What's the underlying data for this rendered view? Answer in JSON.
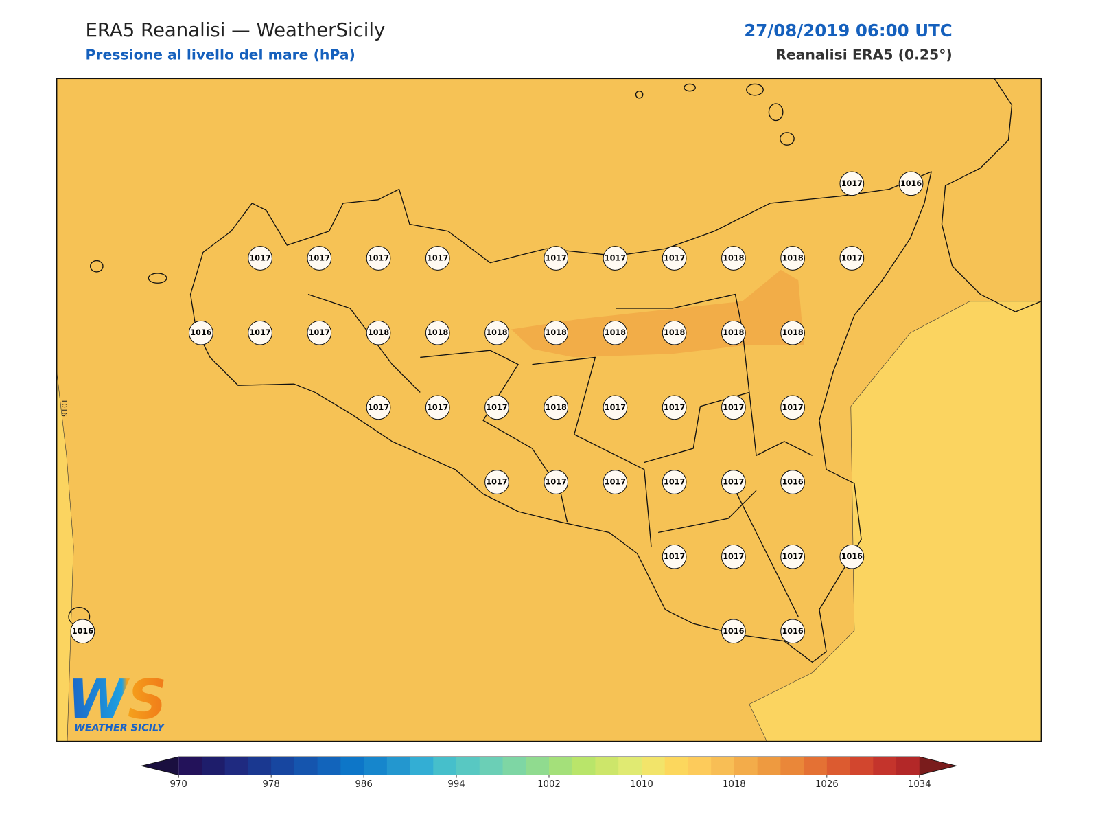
{
  "header": {
    "title": "ERA5 Reanalisi — WeatherSicily",
    "subtitle": "Pressione al livello del mare (hPa)",
    "datetime": "27/08/2019 06:00 UTC",
    "model": "Reanalisi ERA5 (0.25°)"
  },
  "map": {
    "pressure_labels": [
      [
        null,
        null,
        null,
        null,
        null,
        null,
        null,
        null,
        null,
        null,
        null,
        null,
        null,
        1017,
        1016
      ],
      [
        null,
        null,
        null,
        1017,
        1017,
        1017,
        1017,
        null,
        1017,
        1017,
        1017,
        1018,
        1018,
        1017,
        null
      ],
      [
        null,
        null,
        1016,
        1017,
        1017,
        1018,
        1018,
        1018,
        1018,
        1018,
        1018,
        1018,
        1018,
        null,
        null
      ],
      [
        null,
        null,
        null,
        null,
        null,
        1017,
        1017,
        1017,
        1018,
        1017,
        1017,
        1017,
        1017,
        null,
        null
      ],
      [
        null,
        null,
        null,
        null,
        null,
        null,
        null,
        1017,
        1017,
        1017,
        1017,
        1017,
        1016,
        null,
        null
      ],
      [
        null,
        null,
        null,
        null,
        null,
        null,
        null,
        null,
        null,
        null,
        1017,
        1017,
        1017,
        1016,
        null
      ],
      [
        1016,
        null,
        null,
        null,
        null,
        null,
        null,
        null,
        null,
        null,
        null,
        1016,
        1016,
        null,
        null
      ]
    ],
    "contour_labels": [
      1016
    ]
  },
  "logo": {
    "mark": "WS",
    "name": "WEATHER SICILY"
  },
  "colorbar": {
    "ticks": [
      970,
      978,
      986,
      994,
      1002,
      1010,
      1018,
      1026,
      1034
    ],
    "colors": [
      "#23125a",
      "#1e1d6b",
      "#1f2a80",
      "#1a3890",
      "#1746a0",
      "#1555ae",
      "#1264bb",
      "#0d76c8",
      "#1686cc",
      "#2397cf",
      "#33aed4",
      "#46bfcb",
      "#58c8c2",
      "#6bcfb6",
      "#7ed6a4",
      "#90db8f",
      "#a4e07a",
      "#b9e56a",
      "#cde66a",
      "#e0ea72",
      "#f2e46a",
      "#fcd75d",
      "#fdcb5b",
      "#f8be55",
      "#f3ac4a",
      "#ee9a40",
      "#ea8739",
      "#e47134",
      "#dc5b30",
      "#d2462e",
      "#c4342c",
      "#b32828"
    ],
    "under_color": "#1a0f3f",
    "over_color": "#7a1c1c"
  }
}
